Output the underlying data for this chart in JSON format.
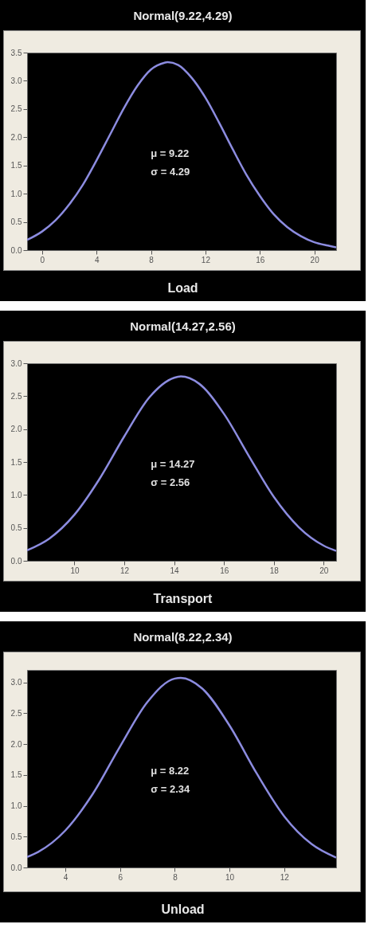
{
  "chart_data": [
    {
      "type": "line",
      "title": "Normal(9.22,4.29)",
      "xlabel": "Load",
      "color": "#8c8ce0",
      "x": [
        -1.1,
        0,
        1,
        2,
        3,
        4,
        5,
        6,
        7,
        8,
        9,
        9.22,
        10,
        11,
        12,
        13,
        14,
        15,
        16,
        17,
        18,
        19,
        20,
        21,
        21.6
      ],
      "values": [
        0.18,
        0.33,
        0.53,
        0.81,
        1.16,
        1.59,
        2.05,
        2.51,
        2.91,
        3.2,
        3.32,
        3.33,
        3.28,
        3.05,
        2.7,
        2.26,
        1.79,
        1.34,
        0.96,
        0.64,
        0.41,
        0.25,
        0.14,
        0.08,
        0.05
      ],
      "xlim": [
        -1.1,
        21.6
      ],
      "xticks": [
        0,
        4,
        8,
        12,
        16,
        20
      ],
      "ylim": [
        0,
        3.5
      ],
      "yticks": [
        {
          "value": 0,
          "label": "0.0"
        },
        0.5,
        {
          "value": 1,
          "label": "1.0"
        },
        1.5,
        {
          "value": 2,
          "label": "2.0"
        },
        2.5,
        {
          "value": 3,
          "label": "3.0"
        },
        3.5
      ],
      "annotations": [
        "μ = 9.22",
        "σ = 4.29"
      ]
    },
    {
      "type": "line",
      "title": "Normal(14.27,2.56)",
      "xlabel": "Transport",
      "color": "#8c8ce0",
      "x": [
        8.1,
        9,
        10,
        11,
        12,
        13,
        14,
        14.27,
        15,
        16,
        17,
        18,
        19,
        20,
        20.5
      ],
      "values": [
        0.16,
        0.34,
        0.7,
        1.24,
        1.89,
        2.48,
        2.78,
        2.8,
        2.69,
        2.23,
        1.59,
        0.97,
        0.51,
        0.23,
        0.15
      ],
      "xlim": [
        8.1,
        20.5
      ],
      "xticks": [
        10,
        12,
        14,
        16,
        18,
        20
      ],
      "ylim": [
        0,
        3
      ],
      "yticks": [
        {
          "value": 0,
          "label": "0.0"
        },
        0.5,
        {
          "value": 1,
          "label": "1.0"
        },
        1.5,
        {
          "value": 2,
          "label": "2.0"
        },
        2.5,
        {
          "value": 3,
          "label": "3.0"
        }
      ],
      "annotations": [
        "μ = 14.27",
        "σ = 2.56"
      ]
    },
    {
      "type": "line",
      "title": "Normal(8.22,2.34)",
      "xlabel": "Unload",
      "color": "#8c8ce0",
      "x": [
        2.6,
        3,
        4,
        5,
        6,
        7,
        8,
        8.22,
        9,
        10,
        11,
        12,
        13,
        13.9
      ],
      "values": [
        0.17,
        0.25,
        0.6,
        1.19,
        1.96,
        2.68,
        3.06,
        3.07,
        2.9,
        2.3,
        1.52,
        0.83,
        0.38,
        0.16
      ],
      "xlim": [
        2.6,
        13.9
      ],
      "xticks": [
        4,
        6,
        8,
        10,
        12
      ],
      "ylim": [
        0,
        3.2
      ],
      "yticks": [
        {
          "value": 0,
          "label": "0.0"
        },
        0.5,
        {
          "value": 1,
          "label": "1.0"
        },
        1.5,
        {
          "value": 2,
          "label": "2.0"
        },
        2.5,
        {
          "value": 3,
          "label": "3.0"
        }
      ],
      "annotations": [
        "μ = 8.22",
        "σ = 2.34"
      ]
    }
  ]
}
